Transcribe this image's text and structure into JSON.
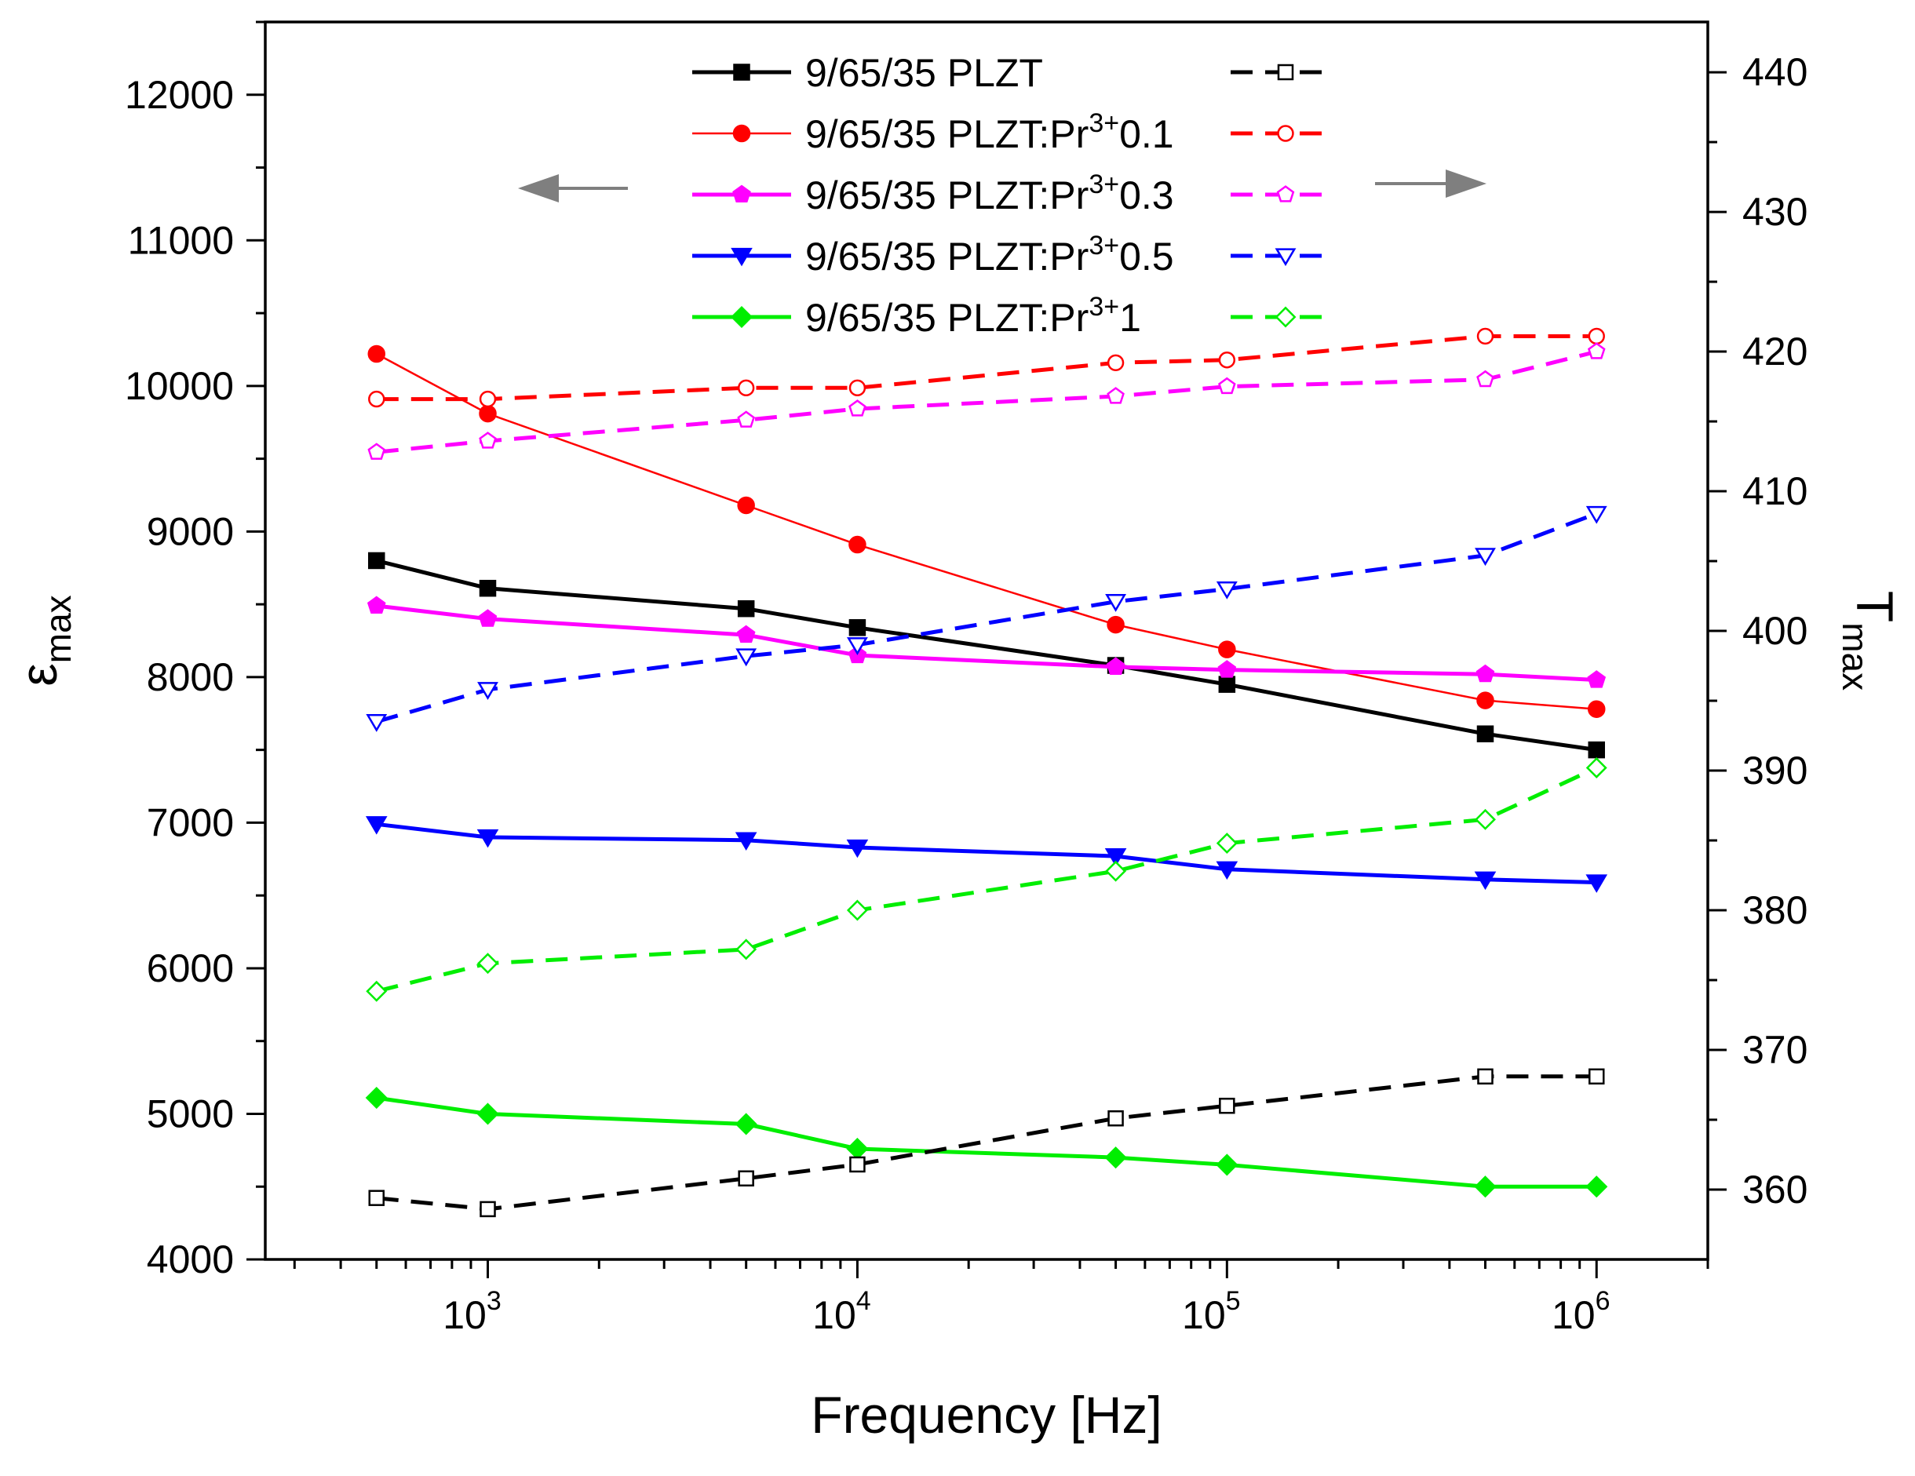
{
  "chart_data": {
    "type": "line",
    "x": [
      500,
      1000,
      5000,
      10000,
      50000,
      100000,
      500000,
      1000000
    ],
    "xlabel": "Frequency [Hz]",
    "xscale": "log",
    "xlim": [
      250,
      2000000
    ],
    "x_ticks": [
      {
        "base": "10",
        "exp": "3",
        "value": 1000
      },
      {
        "base": "10",
        "exp": "4",
        "value": 10000
      },
      {
        "base": "10",
        "exp": "5",
        "value": 100000
      },
      {
        "base": "10",
        "exp": "6",
        "value": 1000000
      }
    ],
    "left_axis": {
      "label_main": "ε",
      "label_sub": "max",
      "ylim": [
        4000,
        12500
      ],
      "ticks": [
        "4000",
        "5000",
        "6000",
        "7000",
        "8000",
        "9000",
        "10000",
        "11000",
        "12000"
      ]
    },
    "right_axis": {
      "label_main": "T",
      "label_sub": "max",
      "ylim": [
        355,
        443.6
      ],
      "ticks": [
        "360",
        "370",
        "380",
        "390",
        "400",
        "410",
        "420",
        "430",
        "440"
      ]
    },
    "arrows": [
      {
        "direction": "left",
        "meaning": "left-axis series"
      },
      {
        "direction": "right",
        "meaning": "right-axis series"
      }
    ],
    "series": [
      {
        "name": "9/65/35 PLZT",
        "name_sup": "",
        "name_tail": "",
        "color": "#000000",
        "axis": "left",
        "marker": "square",
        "filled": true,
        "dash": false,
        "width": 5,
        "values": [
          8800,
          8610,
          8470,
          8340,
          8080,
          7950,
          7610,
          7500
        ]
      },
      {
        "name": "9/65/35 PLZT:Pr",
        "name_sup": "3+",
        "name_tail": "0.1",
        "color": "#ff0000",
        "axis": "left",
        "marker": "circle",
        "filled": true,
        "dash": false,
        "width": 2.5,
        "values": [
          10220,
          9810,
          9180,
          8910,
          8360,
          8190,
          7840,
          7780
        ]
      },
      {
        "name": "9/65/35 PLZT:Pr",
        "name_sup": "3+",
        "name_tail": "0.3",
        "color": "#ff00ff",
        "axis": "left",
        "marker": "pentagon",
        "filled": true,
        "dash": false,
        "width": 5,
        "values": [
          8490,
          8400,
          8290,
          8150,
          8070,
          8050,
          8020,
          7980
        ]
      },
      {
        "name": "9/65/35 PLZT:Pr",
        "name_sup": "3+",
        "name_tail": "0.5",
        "color": "#0000ff",
        "axis": "left",
        "marker": "triangle-down",
        "filled": true,
        "dash": false,
        "width": 5,
        "values": [
          6990,
          6900,
          6880,
          6830,
          6770,
          6680,
          6610,
          6590
        ]
      },
      {
        "name": "9/65/35 PLZT:Pr",
        "name_sup": "3+",
        "name_tail": "1",
        "color": "#00ee00",
        "axis": "left",
        "marker": "diamond",
        "filled": true,
        "dash": false,
        "width": 5,
        "values": [
          5110,
          5000,
          4930,
          4760,
          4700,
          4650,
          4500,
          4500
        ]
      },
      {
        "name": "",
        "name_sup": "",
        "name_tail": "",
        "color": "#000000",
        "axis": "right",
        "marker": "square",
        "filled": false,
        "dash": true,
        "width": 5,
        "values": [
          359.4,
          358.6,
          360.8,
          361.8,
          365.1,
          366.0,
          368.1,
          368.1
        ]
      },
      {
        "name": "",
        "name_sup": "",
        "name_tail": "",
        "color": "#ff0000",
        "axis": "right",
        "marker": "circle",
        "filled": false,
        "dash": true,
        "width": 5,
        "values": [
          416.6,
          416.6,
          417.4,
          417.4,
          419.2,
          419.4,
          421.1,
          421.1
        ]
      },
      {
        "name": "",
        "name_sup": "",
        "name_tail": "",
        "color": "#ff00ff",
        "axis": "right",
        "marker": "pentagon",
        "filled": false,
        "dash": true,
        "width": 5,
        "values": [
          412.8,
          413.6,
          415.1,
          415.9,
          416.8,
          417.5,
          418.0,
          420.0
        ]
      },
      {
        "name": "",
        "name_sup": "",
        "name_tail": "",
        "color": "#0000ff",
        "axis": "right",
        "marker": "triangle-down",
        "filled": false,
        "dash": true,
        "width": 5,
        "values": [
          393.5,
          395.8,
          398.2,
          399.0,
          402.1,
          403.0,
          405.4,
          408.4
        ]
      },
      {
        "name": "",
        "name_sup": "",
        "name_tail": "",
        "color": "#00ee00",
        "axis": "right",
        "marker": "diamond",
        "filled": false,
        "dash": true,
        "width": 5,
        "values": [
          374.2,
          376.2,
          377.2,
          380.0,
          382.8,
          384.8,
          386.5,
          390.2
        ]
      }
    ]
  }
}
